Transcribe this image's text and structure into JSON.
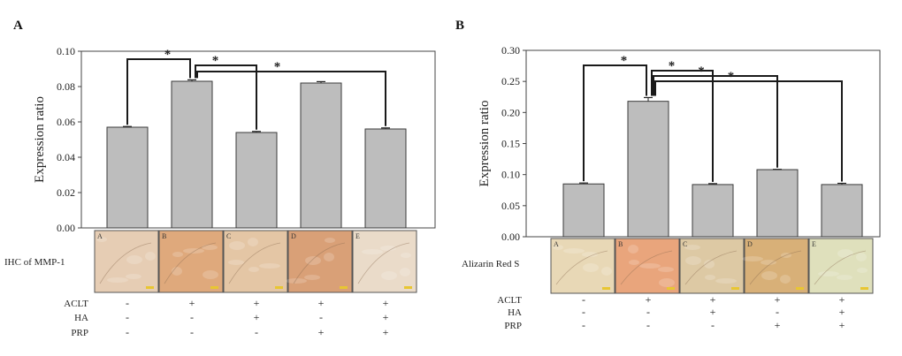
{
  "panels": [
    {
      "letter": "A",
      "ylabel": "Expression ratio",
      "image_label": "IHC of MMP-1",
      "treatment_rows": [
        "ACLT",
        "HA",
        "PRP"
      ],
      "chart_data": {
        "type": "bar",
        "categories": [
          "A",
          "B",
          "C",
          "D",
          "E"
        ],
        "values": [
          0.057,
          0.083,
          0.054,
          0.082,
          0.056
        ],
        "errors": [
          0.0004,
          0.0008,
          0.0006,
          0.0008,
          0.0006
        ],
        "ylim": [
          0,
          0.1
        ],
        "ticks": [
          "0.00",
          "0.02",
          "0.04",
          "0.06",
          "0.08",
          "0.10"
        ],
        "title": "",
        "xlabel": "",
        "ylabel": "Expression ratio",
        "significance": [
          {
            "from": "B",
            "to": "A",
            "label": "*"
          },
          {
            "from": "B",
            "to": "C",
            "label": "*"
          },
          {
            "from": "B",
            "to": "E",
            "label": "*"
          }
        ]
      },
      "image_panel_letters": [
        "A",
        "B",
        "C",
        "D",
        "E"
      ],
      "treatments": [
        [
          "-",
          "+",
          "+",
          "+",
          "+"
        ],
        [
          "-",
          "-",
          "+",
          "-",
          "+"
        ],
        [
          "-",
          "-",
          "-",
          "+",
          "+"
        ]
      ]
    },
    {
      "letter": "B",
      "ylabel": "Expression ratio",
      "image_label": "Alizarin Red S",
      "treatment_rows": [
        "ACLT",
        "HA",
        "PRP"
      ],
      "chart_data": {
        "type": "bar",
        "categories": [
          "A",
          "B",
          "C",
          "D",
          "E"
        ],
        "values": [
          0.085,
          0.218,
          0.084,
          0.108,
          0.084
        ],
        "errors": [
          0.0015,
          0.006,
          0.0015,
          0.0005,
          0.002
        ],
        "ylim": [
          0,
          0.3
        ],
        "ticks": [
          "0.00",
          "0.05",
          "0.10",
          "0.15",
          "0.20",
          "0.25",
          "0.30"
        ],
        "title": "",
        "xlabel": "",
        "ylabel": "Expression ratio",
        "significance": [
          {
            "from": "B",
            "to": "A",
            "label": "*"
          },
          {
            "from": "B",
            "to": "C",
            "label": "*"
          },
          {
            "from": "B",
            "to": "D",
            "label": "*"
          },
          {
            "from": "B",
            "to": "E",
            "label": "*"
          }
        ]
      },
      "image_panel_letters": [
        "A",
        "B",
        "C",
        "D",
        "E"
      ],
      "treatments": [
        [
          "-",
          "+",
          "+",
          "+",
          "+"
        ],
        [
          "-",
          "-",
          "+",
          "-",
          "+"
        ],
        [
          "-",
          "-",
          "-",
          "+",
          "+"
        ]
      ]
    }
  ],
  "colors": {
    "bar_fill": "#bdbdbd",
    "bar_stroke": "#3a3a3a",
    "axis": "#444444",
    "bracket": "#1a1a1a",
    "panelA_images": [
      "#e6cdb4",
      "#dfa97c",
      "#e4c6a5",
      "#d9a077",
      "#eadbc9"
    ],
    "panelB_images": [
      "#e8d8b6",
      "#e9a57c",
      "#ddc9a4",
      "#d8b078",
      "#dfe0bc"
    ]
  }
}
